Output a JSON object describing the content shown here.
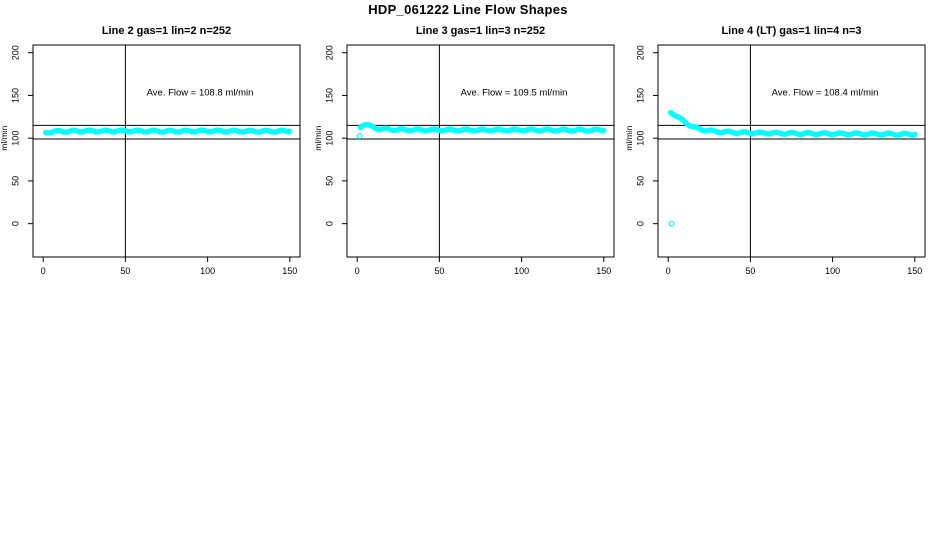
{
  "main_title": "HDP_061222  Line Flow Shapes",
  "point_color": "#00ffff",
  "axis_color": "#000000",
  "chart_data": {
    "type": "scatter",
    "title": "HDP_061222  Line Flow Shapes",
    "xlabel": "",
    "ylabel": "ml/min",
    "x_ticks": [
      0,
      50,
      100,
      150
    ],
    "y_ticks": [
      0,
      50,
      100,
      150,
      200
    ],
    "xlim": [
      -6.2,
      156.2
    ],
    "ylim": [
      -39,
      209
    ],
    "grid": false,
    "legend": "none",
    "vline_x": 50,
    "hlines": [
      115,
      99
    ],
    "panels": [
      {
        "title": "Line 2 gas=1 lin=2 n=252",
        "n": 252,
        "ave_flow": 108.8,
        "annotation": "Ave. Flow =  108.8  ml/min",
        "curve": [
          [
            1.5,
            106.5
          ],
          [
            4,
            107.5
          ],
          [
            10,
            108
          ],
          [
            25,
            108.3
          ],
          [
            50,
            108.4
          ],
          [
            75,
            108.1
          ],
          [
            100,
            108.4
          ],
          [
            125,
            108.1
          ],
          [
            150,
            108.2
          ]
        ],
        "isolated_points": []
      },
      {
        "title": "Line 3 gas=1 lin=3 n=252",
        "n": 252,
        "ave_flow": 109.5,
        "annotation": "Ave. Flow =  109.5  ml/min",
        "curve": [
          [
            2,
            112.5
          ],
          [
            3.2,
            115.5
          ],
          [
            4.5,
            116.5
          ],
          [
            6,
            115.5
          ],
          [
            8,
            113.8
          ],
          [
            11,
            112
          ],
          [
            15,
            110.8
          ],
          [
            22,
            110
          ],
          [
            35,
            109.6
          ],
          [
            60,
            109.5
          ],
          [
            100,
            109.5
          ],
          [
            150,
            109.3
          ]
        ],
        "isolated_points": [
          [
            1.5,
            102.5
          ]
        ]
      },
      {
        "title": "Line 4 (LT) gas=1 lin=4 n=3",
        "n": 3,
        "ave_flow": 108.4,
        "annotation": "Ave. Flow =  108.4  ml/min",
        "curve": [
          [
            1.5,
            130
          ],
          [
            3,
            128.8
          ],
          [
            5,
            126
          ],
          [
            7.5,
            122.5
          ],
          [
            10,
            119
          ],
          [
            13,
            115.5
          ],
          [
            16,
            112.5
          ],
          [
            19,
            110.8
          ],
          [
            23,
            109.2
          ],
          [
            28,
            108
          ],
          [
            34,
            107.2
          ],
          [
            42,
            106.6
          ],
          [
            55,
            106.1
          ],
          [
            72,
            105.7
          ],
          [
            92,
            105.3
          ],
          [
            115,
            105
          ],
          [
            135,
            104.7
          ],
          [
            150,
            104.5
          ]
        ],
        "isolated_points": [
          [
            2,
            0
          ]
        ]
      }
    ]
  }
}
